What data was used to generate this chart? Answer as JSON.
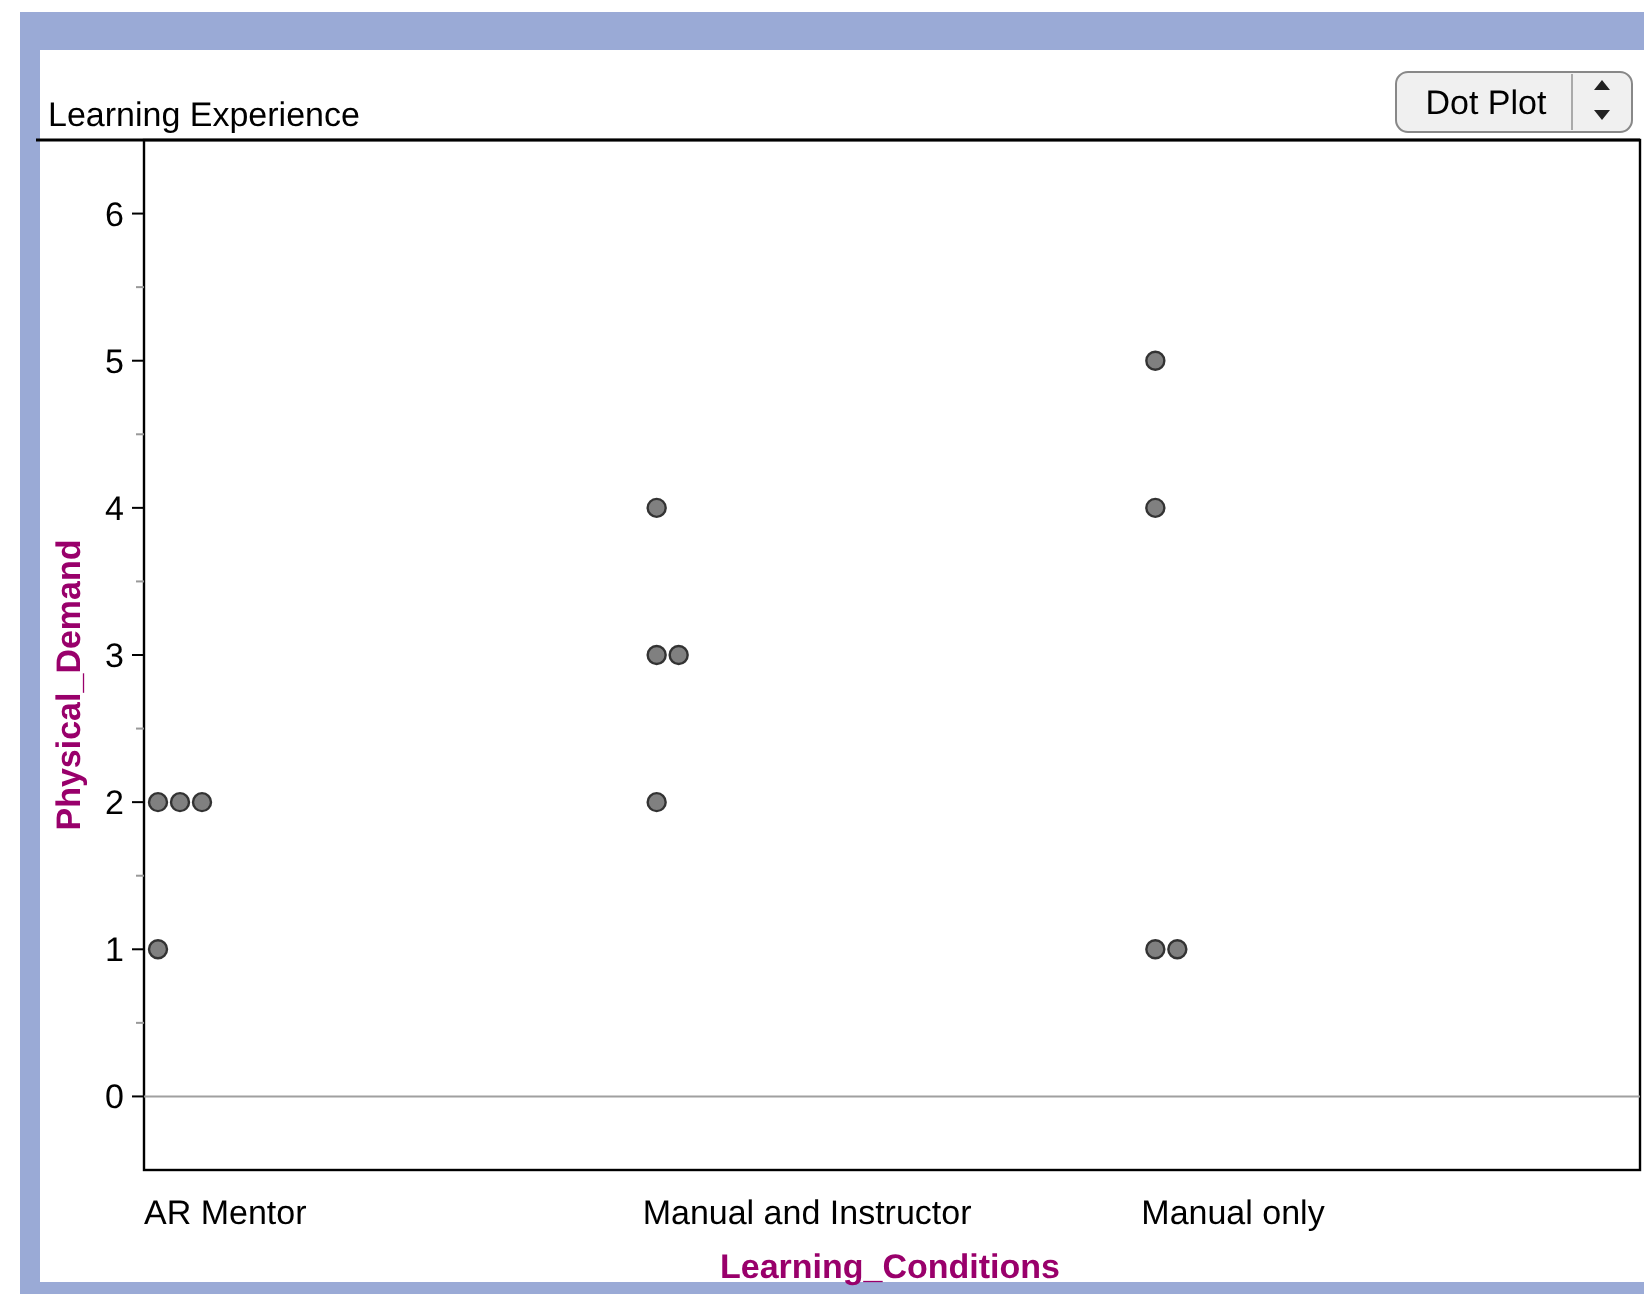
{
  "chart_data": {
    "type": "scatter",
    "title": "Learning Experience",
    "xlabel": "Learning_Conditions",
    "ylabel": "Physical_Demand",
    "categories": [
      "AR Mentor",
      "Manual and Instructor",
      "Manual only"
    ],
    "series": [
      {
        "color": "#808080",
        "x": [
          "AR Mentor",
          "AR Mentor",
          "AR Mentor",
          "AR Mentor",
          "Manual and Instructor",
          "Manual and Instructor",
          "Manual and Instructor",
          "Manual and Instructor",
          "Manual only",
          "Manual only",
          "Manual only",
          "Manual only"
        ],
        "values": [
          2,
          2,
          2,
          1,
          4,
          3,
          3,
          2,
          5,
          4,
          1,
          1
        ]
      }
    ],
    "ylim": [
      -0.5,
      6.5
    ],
    "yticks": [
      0,
      1,
      2,
      3,
      4,
      5,
      6
    ],
    "ref_lines": [
      {
        "axis": "y",
        "value": 0,
        "color": "#a0a0a0"
      }
    ],
    "marker": "circle",
    "annotations": [
      "Dot Plot"
    ]
  }
}
